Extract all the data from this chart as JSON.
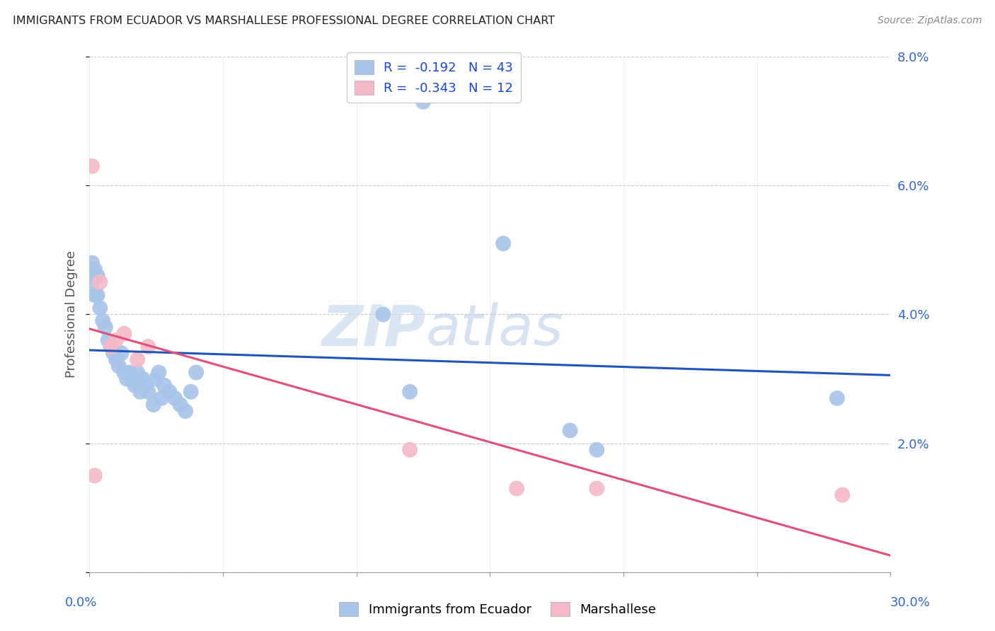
{
  "title": "IMMIGRANTS FROM ECUADOR VS MARSHALLESE PROFESSIONAL DEGREE CORRELATION CHART",
  "source": "Source: ZipAtlas.com",
  "ylabel": "Professional Degree",
  "xmin": 0.0,
  "xmax": 0.3,
  "ymin": 0.0,
  "ymax": 0.08,
  "yticks": [
    0.0,
    0.02,
    0.04,
    0.06,
    0.08
  ],
  "ytick_labels": [
    "",
    "2.0%",
    "4.0%",
    "6.0%",
    "8.0%"
  ],
  "xticks": [
    0.0,
    0.05,
    0.1,
    0.15,
    0.2,
    0.25,
    0.3
  ],
  "ecuador_color": "#a8c4e8",
  "marshallese_color": "#f5b8c8",
  "ecuador_line_color": "#2255bb",
  "marshallese_line_color": "#e0507a",
  "legend_R_color": "#1a45cc",
  "ecuador_R": -0.192,
  "ecuador_N": 43,
  "marshallese_R": -0.343,
  "marshallese_N": 12,
  "ecuador_x": [
    0.001,
    0.001,
    0.002,
    0.002,
    0.003,
    0.003,
    0.004,
    0.005,
    0.006,
    0.007,
    0.008,
    0.009,
    0.01,
    0.011,
    0.012,
    0.013,
    0.014,
    0.015,
    0.016,
    0.017,
    0.018,
    0.019,
    0.02,
    0.021,
    0.022,
    0.024,
    0.025,
    0.026,
    0.027,
    0.028,
    0.03,
    0.032,
    0.034,
    0.036,
    0.038,
    0.04,
    0.11,
    0.12,
    0.125,
    0.155,
    0.18,
    0.19,
    0.28
  ],
  "ecuador_y": [
    0.048,
    0.045,
    0.047,
    0.043,
    0.046,
    0.043,
    0.041,
    0.039,
    0.038,
    0.036,
    0.035,
    0.034,
    0.033,
    0.032,
    0.034,
    0.031,
    0.03,
    0.031,
    0.03,
    0.029,
    0.031,
    0.028,
    0.03,
    0.029,
    0.028,
    0.026,
    0.03,
    0.031,
    0.027,
    0.029,
    0.028,
    0.027,
    0.026,
    0.025,
    0.028,
    0.031,
    0.04,
    0.028,
    0.073,
    0.051,
    0.022,
    0.019,
    0.027
  ],
  "marshallese_x": [
    0.001,
    0.002,
    0.004,
    0.008,
    0.01,
    0.013,
    0.018,
    0.022,
    0.12,
    0.16,
    0.19,
    0.282
  ],
  "marshallese_y": [
    0.063,
    0.015,
    0.045,
    0.035,
    0.036,
    0.037,
    0.033,
    0.035,
    0.019,
    0.013,
    0.013,
    0.012
  ],
  "watermark_zip": "ZIP",
  "watermark_atlas": "atlas",
  "background_color": "#ffffff",
  "grid_color": "#cccccc"
}
